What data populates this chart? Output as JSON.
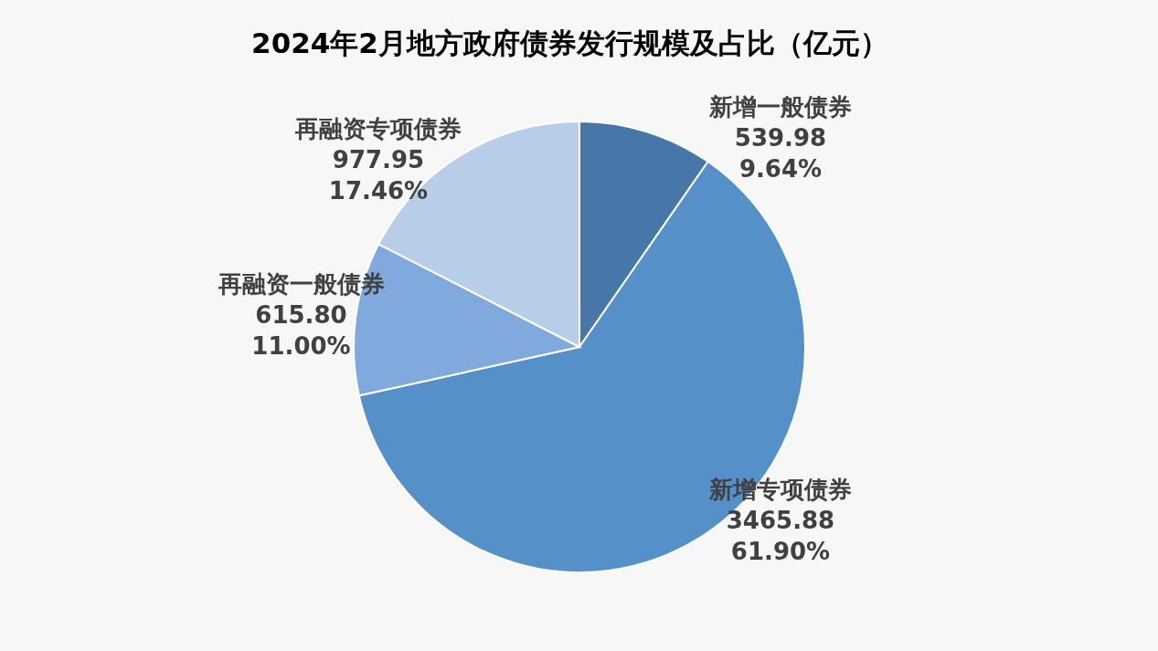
{
  "chart_data": {
    "type": "pie",
    "title": "2024年2月地方政府债券发行规模及占比（亿元）",
    "categories": [
      "新增一般债券",
      "新增专项债券",
      "再融资一般债券",
      "再融资专项债券"
    ],
    "values": [
      539.98,
      3465.88,
      615.8,
      977.95
    ],
    "colors": [
      "#4677a8",
      "#5590c8",
      "#80aade",
      "#b8cde8"
    ],
    "value_labels": [
      "539.98\n9.64%",
      "3465.88\n61.90%",
      "615.80\n11.00%",
      "977.95\n17.46%"
    ],
    "legend": false
  }
}
